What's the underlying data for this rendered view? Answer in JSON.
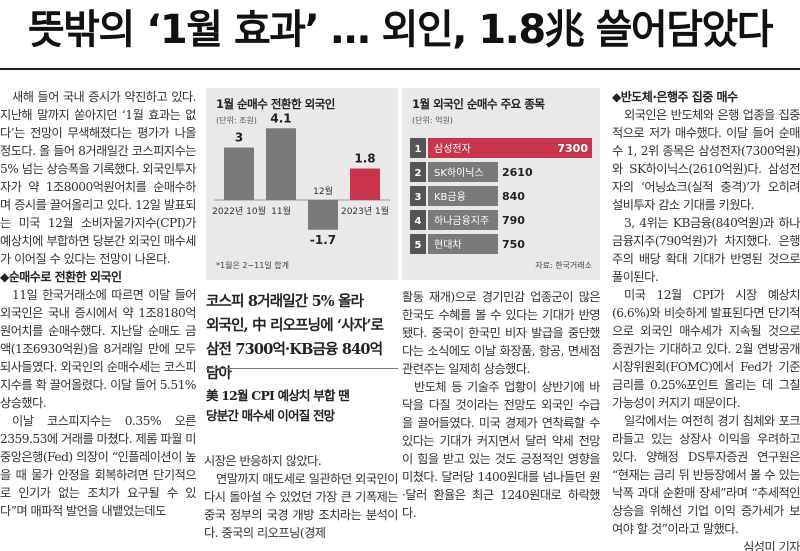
{
  "headline": "뜻밖의 ‘1월 효과’ … 외인, 1.8兆 쓸어담았다",
  "chart1": {
    "title": "1월 순매수 전환한 외국인",
    "unit": "(단위: 조원)",
    "note": "*1월은 2~11일 합계",
    "chart_data": {
      "type": "bar",
      "categories": [
        "2022년 10월",
        "11월",
        "12월",
        "2023년 1월"
      ],
      "values": [
        3,
        4.1,
        -1.7,
        1.8
      ],
      "value_labels": [
        "3",
        "4.1",
        "-1.7",
        "1.8"
      ],
      "colors": [
        "#7a7a7a",
        "#7a7a7a",
        "#7a7a7a",
        "#c8344d"
      ]
    }
  },
  "chart2": {
    "title": "1월 외국인 순매수 주요 종목",
    "unit": "(단위: 억원)",
    "source": "자료: 한국거래소",
    "chart_data": {
      "type": "bar",
      "orientation": "horizontal",
      "ranks": [
        "1",
        "2",
        "3",
        "4",
        "5"
      ],
      "categories": [
        "삼성전자",
        "SK하이닉스",
        "KB금융",
        "하나금융지주",
        "현대차"
      ],
      "values": [
        7300,
        2610,
        840,
        790,
        750
      ],
      "value_labels": [
        "7300",
        "2610",
        "840",
        "790",
        "750"
      ],
      "colors": [
        "#c8344d",
        "#7a7a7a",
        "#7a7a7a",
        "#7a7a7a",
        "#7a7a7a"
      ]
    }
  },
  "deck1": [
    "코스피 8거래일간 5% 올라",
    "외국인, 中 리오프닝에 ‘사자’로",
    "삼전 7300억·KB금융 840억 담아"
  ],
  "deck2": [
    "美 12월 CPI 예상치 부합 땐",
    "당분간 매수세 이어질 전망"
  ],
  "col1": {
    "p1": "새해 들어 국내 증시가 약진하고 있다. 지난해 말까지 쏟아지던 ‘1월 효과는 없다’는 전망이 무색해졌다는 평가가 나올 정도다. 올 들어 8거래일간 코스피지수는 5% 넘는 상승폭을 기록했다. 외국인투자자가 약 1조8000억원어치를 순매수하며 증시를 끌어올리고 있다. 12일 발표되는 미국 12월 소비자물가지수(CPI)가 예상치에 부합하면 당분간 외국인 매수세가 이어질 수 있다는 전망이 나온다.",
    "sub": "◆순매수로 전환한 외국인",
    "p2": "11일 한국거래소에 따르면 이달 들어 외국인은 국내 증시에서 약 1조8180억원어치를 순매수했다. 지난달 순매도 금액(1조6930억원)을 8거래일 만에 모두 되사들였다. 외국인의 순매수세는 코스피지수를 확 끌어올렸다. 이달 들어 5.51% 상승했다.",
    "p3": "이날 코스피지수는 0.35% 오른 2359.53에 거래를 마쳤다. 제롬 파월 미 중앙은행(Fed) 의장이 “인플레이션이 높을 때 물가 안정을 회복하려면 단기적으로 인기가 없는 조치가 요구될 수 있다”며 매파적 발언을 내뱉었는데도"
  },
  "col2": {
    "p1": "시장은 반응하지 않았다.",
    "p2": "연말까지 매도세로 일관하던 외국인이 다시 돌아설 수 있었던 가장 큰 기폭제는 중국 정부의 국경 개방 조치라는 분석이다. 중국의 리오프닝(경제"
  },
  "col3": {
    "p1": "활동 재개)으로 경기민감 업종군이 많은 한국도 수혜를 볼 수 있다는 기대가 반영됐다. 중국이 한국민 비자 발급을 중단했다는 소식에도 이날 화장품, 항공, 면세점 관련주는 일제히 상승했다.",
    "p2": "반도체 등 기술주 업황이 상반기에 바닥을 다질 것이라는 전망도 외국인 수급을 끌어들였다. 미국 경제가 연착륙할 수 있다는 기대가 커지면서 달러 약세 전망이 힘을 받고 있는 것도 긍정적인 영향을 미쳤다. 달러당 1400원대를 넘나들던 원·달러 환율은 최근 1240원대로 하락했다."
  },
  "col4": {
    "sub": "◆반도체·은행주 집중 매수",
    "p1": "외국인은 반도체와 은행 업종을 집중적으로 저가 매수했다. 이달 들어 순매수 1, 2위 종목은 삼성전자(7300억원)와 SK하이닉스(2610억원)다. 삼성전자의 ‘어닝쇼크(실적 충격)’가 오히려 설비투자 감소 기대를 키웠다.",
    "p2": "3, 4위는 KB금융(840억원)과 하나금융지주(790억원)가 차지했다. 은행주의 배당 확대 기대가 반영된 것으로 풀이된다.",
    "p3": "미국 12월 CPI가 시장 예상치(6.6%)와 비슷하게 발표된다면 단기적으로 외국인 매수세가 지속될 것으로 증권가는 기대하고 있다. 2월 연방공개시장위원회(FOMC)에서 Fed가 기준금리를 0.25%포인트 올리는 데 그칠 가능성이 커지기 때문이다.",
    "p4": "일각에서는 여전히 경기 침체와 포크라들고 있는 상장사 이익을 우려하고 있다. 양해정 DS투자증권 연구원은 “현재는 금리 뒤 반등장에서 볼 수 있는 낙폭 과대 순환매 장세”라며 “추세적인 상승을 위해선 기업 이익 증가세가 보여야 할 것”이라고 말했다.",
    "byline": "심성미 기자"
  }
}
